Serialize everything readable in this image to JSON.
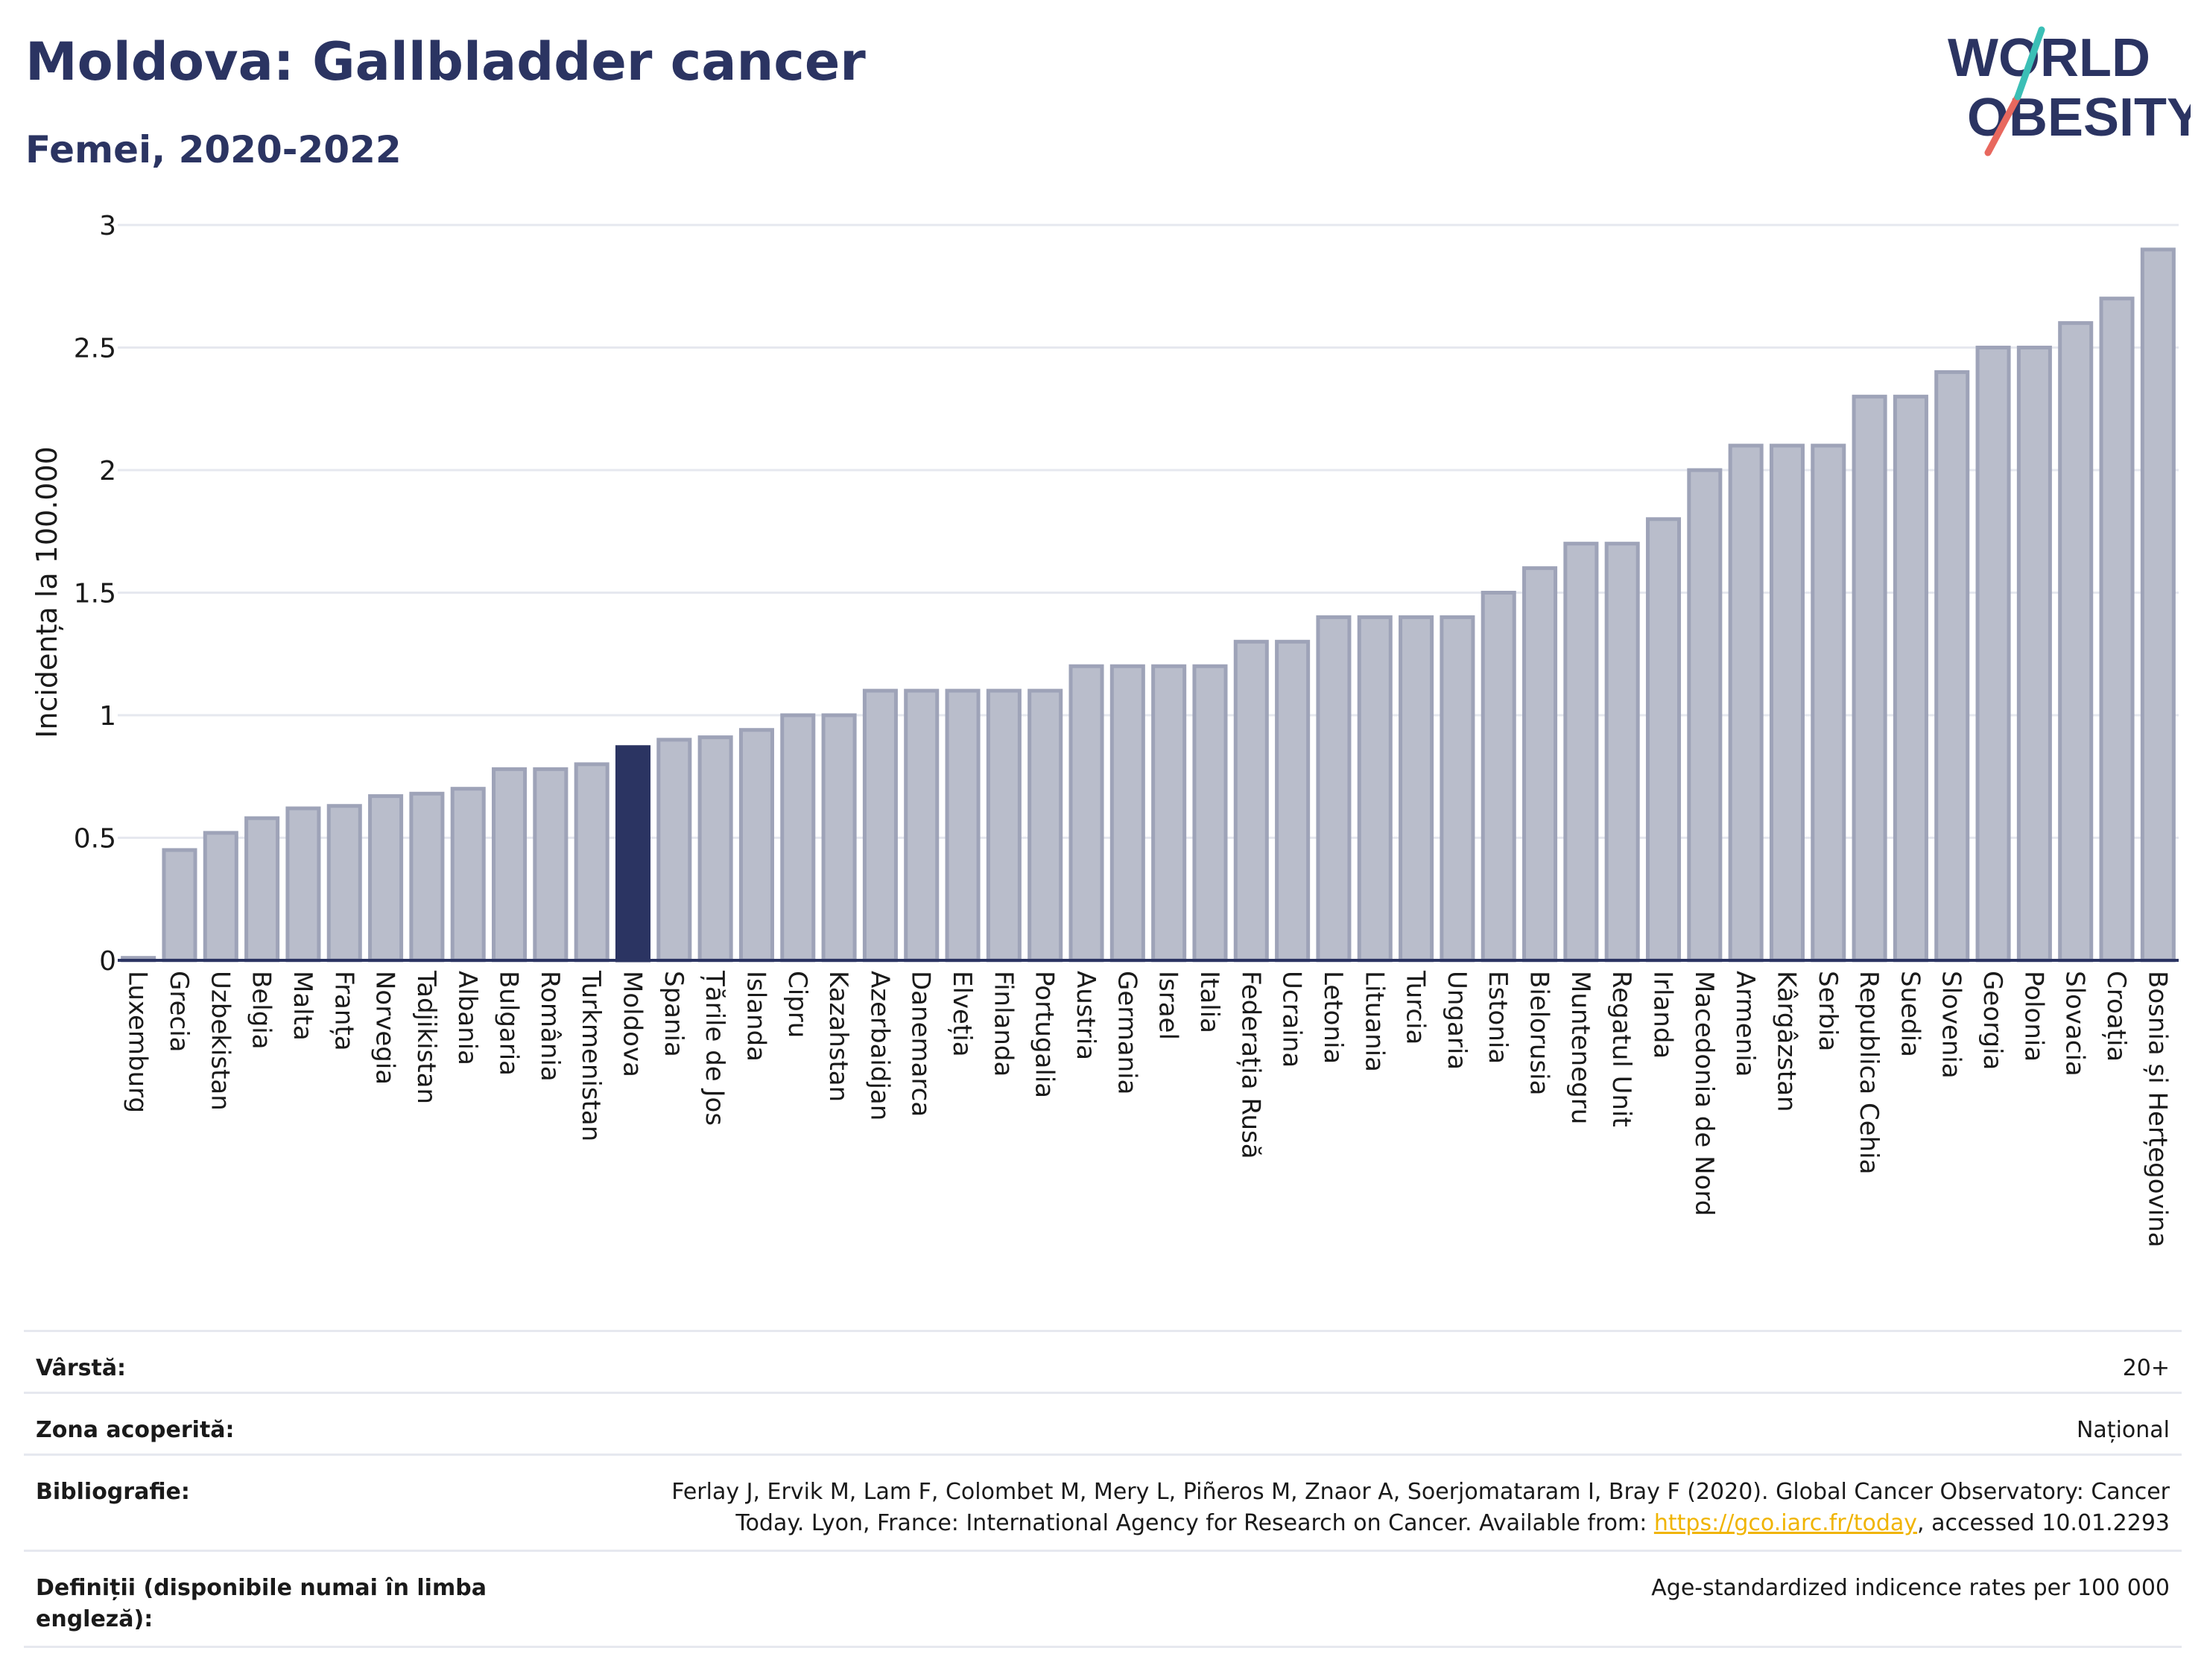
{
  "header": {
    "title": "Moldova: Gallbladder cancer",
    "subtitle": "Femei, 2020-2022"
  },
  "logo": {
    "line1": "WORLD",
    "line2": "OBESITY"
  },
  "colors": {
    "bar_default": "#b9bdcb",
    "bar_stroke": "#9ea3b8",
    "bar_highlight": "#2b3462",
    "grid": "#e6e8ef",
    "text": "#2b3462",
    "logo_teal": "#3bbfb6",
    "logo_red": "#e8685e"
  },
  "chart_data": {
    "type": "bar",
    "ylabel": "Incidența la 100.000",
    "ylim": [
      0,
      3
    ],
    "yticks": [
      "0",
      "0.5",
      "1",
      "1.5",
      "2",
      "2.5",
      "3"
    ],
    "highlight": "Moldova",
    "grid": true,
    "categories": [
      "Luxemburg",
      "Grecia",
      "Uzbekistan",
      "Belgia",
      "Malta",
      "Franța",
      "Norvegia",
      "Tadjikistan",
      "Albania",
      "Bulgaria",
      "România",
      "Turkmenistan",
      "Moldova",
      "Spania",
      "Țările de Jos",
      "Islanda",
      "Cipru",
      "Kazahstan",
      "Azerbaidjan",
      "Danemarca",
      "Elveția",
      "Finlanda",
      "Portugalia",
      "Austria",
      "Germania",
      "Israel",
      "Italia",
      "Federația Rusă",
      "Ucraina",
      "Letonia",
      "Lituania",
      "Turcia",
      "Ungaria",
      "Estonia",
      "Bielorusia",
      "Muntenegru",
      "Regatul Unit",
      "Irlanda",
      "Macedonia de Nord",
      "Armenia",
      "Kârgâzstan",
      "Serbia",
      "Republica Cehia",
      "Suedia",
      "Slovenia",
      "Georgia",
      "Polonia",
      "Slovacia",
      "Croația",
      "Bosnia și Herțegovina"
    ],
    "values": [
      0.01,
      0.45,
      0.52,
      0.58,
      0.62,
      0.63,
      0.67,
      0.68,
      0.7,
      0.78,
      0.78,
      0.8,
      0.87,
      0.9,
      0.91,
      0.94,
      1.0,
      1.0,
      1.1,
      1.1,
      1.1,
      1.1,
      1.1,
      1.2,
      1.2,
      1.2,
      1.2,
      1.3,
      1.3,
      1.4,
      1.4,
      1.4,
      1.4,
      1.5,
      1.6,
      1.7,
      1.7,
      1.8,
      2.0,
      2.1,
      2.1,
      2.1,
      2.3,
      2.3,
      2.4,
      2.5,
      2.5,
      2.6,
      2.7,
      2.9
    ]
  },
  "meta": {
    "age_label": "Vârstă:",
    "age_value": "20+",
    "coverage_label": "Zona acoperită:",
    "coverage_value": "Național",
    "biblio_label": "Bibliografie:",
    "biblio_text1": "Ferlay J, Ervik M, Lam F, Colombet M, Mery L, Piñeros M, Znaor A, Soerjomataram I, Bray F (2020). Global Cancer Observatory: Cancer",
    "biblio_text2": "Today. Lyon, France: International Agency for Research on Cancer. Available from: ",
    "biblio_link": "https://gco.iarc.fr/today",
    "biblio_text3": ", accessed 10.01.2293",
    "def_label": "Definiții (disponibile numai în limba engleză):",
    "def_value": "Age-standardized indicence rates per 100 000"
  }
}
